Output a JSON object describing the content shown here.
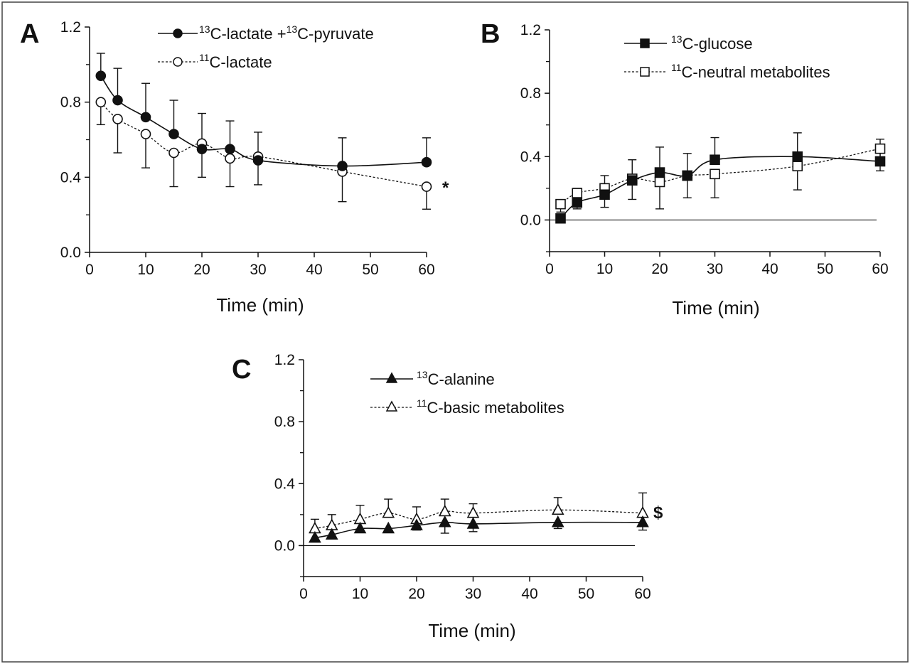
{
  "chart_data": [
    {
      "panel": "A",
      "type": "line",
      "xlabel": "Time (min)",
      "ylabel": "",
      "xlim": [
        0,
        60
      ],
      "ylim": [
        0,
        1.2
      ],
      "xticks": [
        "0",
        "10",
        "20",
        "30",
        "40",
        "50",
        "60"
      ],
      "yticks": [
        "0.0",
        "0.4",
        "0.8",
        "1.2"
      ],
      "grid": false,
      "legend_position": "top-right",
      "x": [
        2,
        5,
        10,
        15,
        20,
        25,
        30,
        45,
        60
      ],
      "series": [
        {
          "name_sup": "13",
          "name_main": "C-lactate +",
          "name_sup2": "13",
          "name_main2": "C-pyruvate",
          "marker": "circle",
          "filled": true,
          "dashed": false,
          "values": [
            0.94,
            0.81,
            0.72,
            0.63,
            0.55,
            0.55,
            0.49,
            0.46,
            0.48
          ],
          "error_up": [
            0.12,
            0.17,
            0.18,
            0.18,
            0.19,
            0.15,
            0.15,
            0.15,
            0.13
          ]
        },
        {
          "name_sup": "11",
          "name_main": "C-lactate",
          "marker": "circle",
          "filled": false,
          "dashed": true,
          "values": [
            0.8,
            0.71,
            0.63,
            0.53,
            0.58,
            0.5,
            0.51,
            0.43,
            0.35
          ],
          "error_down": [
            0.12,
            0.18,
            0.18,
            0.18,
            0.18,
            0.15,
            0.15,
            0.16,
            0.12
          ]
        }
      ],
      "annotation": "*"
    },
    {
      "panel": "B",
      "type": "line",
      "xlabel": "Time (min)",
      "ylabel": "",
      "xlim": [
        0,
        60
      ],
      "ylim": [
        -0.2,
        1.2
      ],
      "xticks": [
        "0",
        "10",
        "20",
        "30",
        "40",
        "50",
        "60"
      ],
      "yticks": [
        "0.0",
        "0.4",
        "0.8",
        "1.2"
      ],
      "grid": false,
      "legend_position": "top-right",
      "x": [
        2,
        5,
        10,
        15,
        20,
        25,
        30,
        45,
        60
      ],
      "series": [
        {
          "name_sup": "13",
          "name_main": "C-glucose",
          "marker": "square",
          "filled": true,
          "dashed": false,
          "values": [
            0.01,
            0.11,
            0.16,
            0.25,
            0.3,
            0.28,
            0.38,
            0.4,
            0.37
          ],
          "error_up": [
            0.0,
            0.09,
            0.12,
            0.13,
            0.16,
            0.14,
            0.14,
            0.15,
            0.14
          ]
        },
        {
          "name_sup": "11",
          "name_main": "C-neutral metabolites",
          "marker": "square",
          "filled": false,
          "dashed": true,
          "values": [
            0.1,
            0.17,
            0.2,
            0.26,
            0.24,
            0.28,
            0.29,
            0.34,
            0.45
          ],
          "error_down": [
            0.05,
            0.1,
            0.12,
            0.13,
            0.17,
            0.14,
            0.15,
            0.15,
            0.14
          ]
        }
      ]
    },
    {
      "panel": "C",
      "type": "line",
      "xlabel": "Time (min)",
      "ylabel": "",
      "xlim": [
        0,
        60
      ],
      "ylim": [
        -0.2,
        1.2
      ],
      "xticks": [
        "0",
        "10",
        "20",
        "30",
        "40",
        "50",
        "60"
      ],
      "yticks": [
        "0.0",
        "0.4",
        "0.8",
        "1.2"
      ],
      "grid": false,
      "legend_position": "top-center",
      "x": [
        2,
        5,
        10,
        15,
        20,
        25,
        30,
        45,
        60
      ],
      "series": [
        {
          "name_sup": "13",
          "name_main": "C-alanine",
          "marker": "triangle",
          "filled": true,
          "dashed": false,
          "values": [
            0.05,
            0.07,
            0.11,
            0.11,
            0.13,
            0.15,
            0.14,
            0.15,
            0.15
          ],
          "error_down": [
            0.02,
            0.02,
            0.02,
            0.02,
            0.03,
            0.07,
            0.05,
            0.04,
            0.05
          ]
        },
        {
          "name_sup": "11",
          "name_main": "C-basic metabolites",
          "marker": "triangle",
          "filled": false,
          "dashed": true,
          "values": [
            0.11,
            0.13,
            0.17,
            0.21,
            0.17,
            0.22,
            0.21,
            0.23,
            0.21
          ],
          "error_up": [
            0.06,
            0.07,
            0.09,
            0.09,
            0.08,
            0.08,
            0.06,
            0.08,
            0.13
          ]
        }
      ],
      "annotation": "$"
    }
  ]
}
